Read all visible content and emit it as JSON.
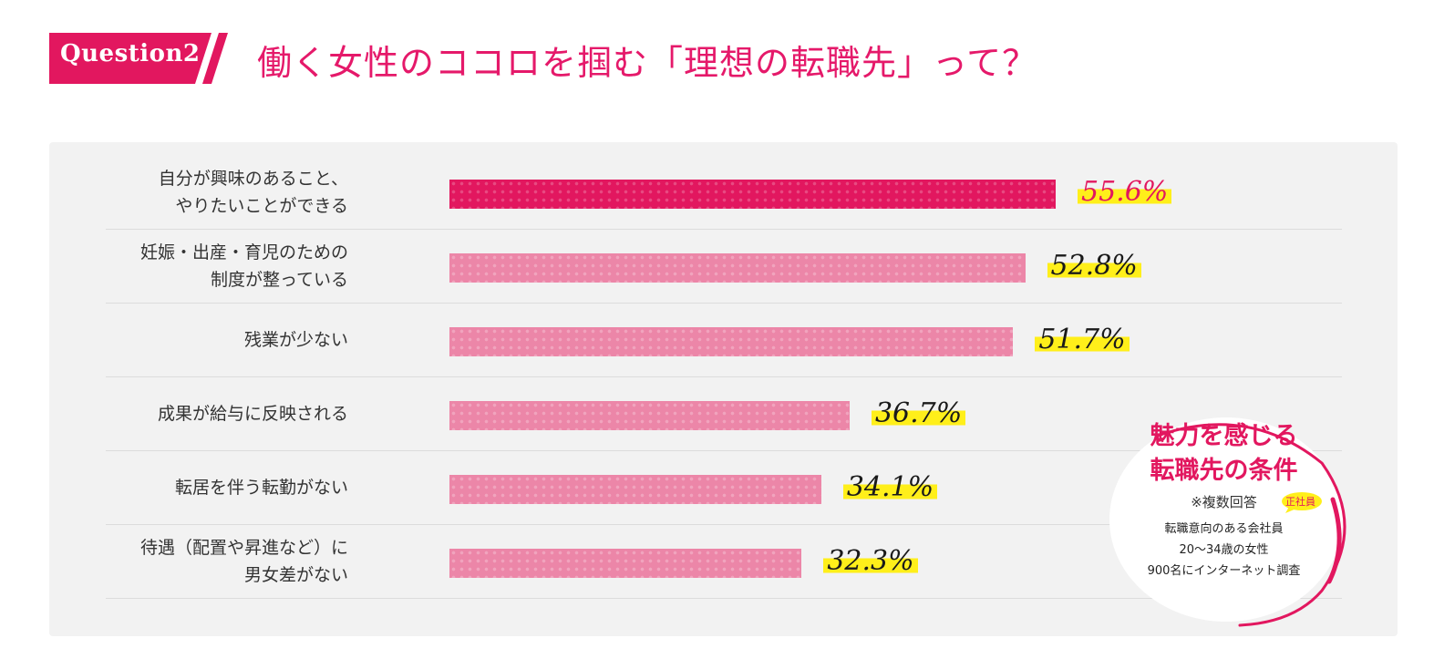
{
  "header": {
    "badge": "Question2",
    "headline": "働く女性のココロを掴む「理想の転職先」って？"
  },
  "chart_data": {
    "type": "bar",
    "orientation": "horizontal",
    "categories": [
      [
        "自分が興味のあること、",
        "やりたいことができる"
      ],
      [
        "妊娠・出産・育児のための",
        "制度が整っている"
      ],
      [
        "残業が少ない"
      ],
      [
        "成果が給与に反映される"
      ],
      [
        "転居を伴う転勤がない"
      ],
      [
        "待遇（配置や昇進など）に",
        "男女差がない"
      ]
    ],
    "values": [
      55.6,
      52.8,
      51.7,
      36.7,
      34.1,
      32.3
    ],
    "value_labels": [
      "55.6%",
      "52.8%",
      "51.7%",
      "36.7%",
      "34.1%",
      "32.3%"
    ],
    "xlim": [
      0,
      100
    ],
    "colors": {
      "highlight": "#e2175f",
      "bar": "#ec86a8",
      "marker": "#ffef1a",
      "accent": "#e5196a"
    }
  },
  "stamp": {
    "title_line1": "魅力を感じる",
    "title_line2": "転職先の条件",
    "note": "※複数回答",
    "tag": "正社員",
    "survey_line1": "転職意向のある会社員",
    "survey_line2": "20～34歳の女性",
    "survey_line3": "900名にインターネット調査"
  }
}
